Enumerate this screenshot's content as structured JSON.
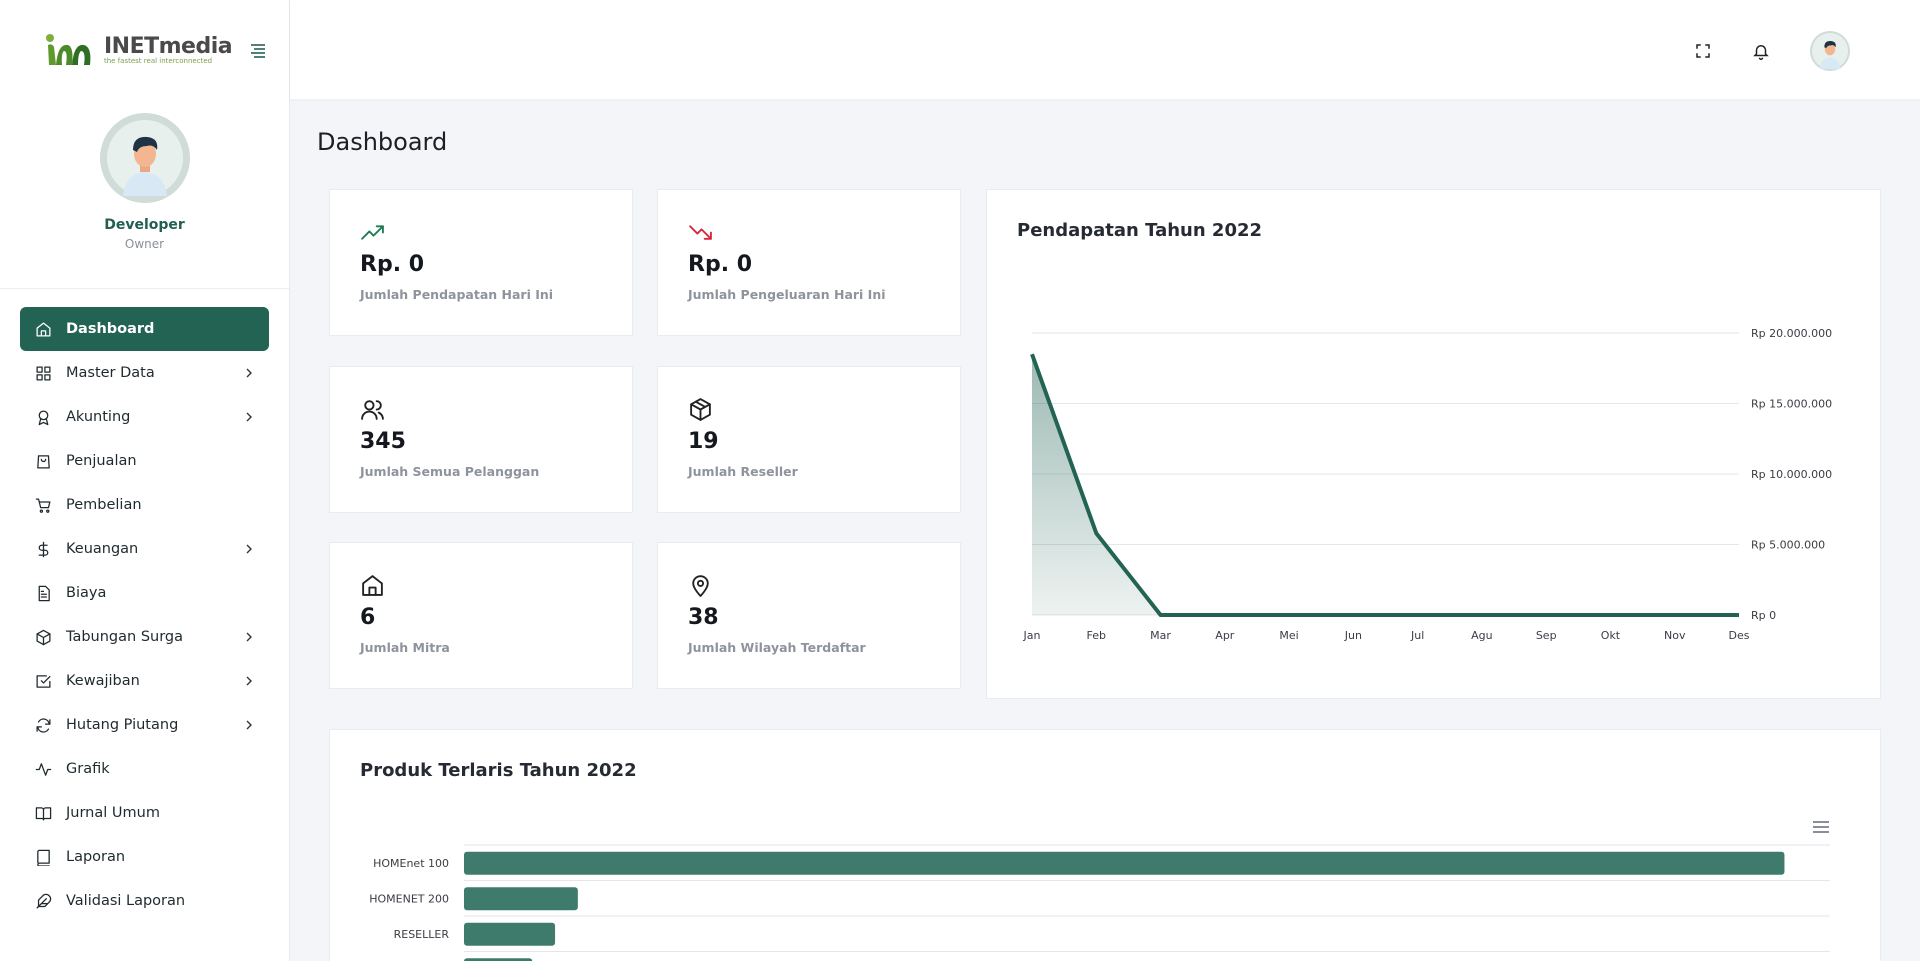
{
  "brand": {
    "name": "INETmedia",
    "tagline": "the fastest real interconnected"
  },
  "profile": {
    "name": "Developer",
    "role": "Owner"
  },
  "nav": [
    {
      "label": "Dashboard",
      "icon": "home-icon",
      "active": true,
      "has_sub": false
    },
    {
      "label": "Master Data",
      "icon": "grid-icon",
      "has_sub": true
    },
    {
      "label": "Akunting",
      "icon": "award-icon",
      "has_sub": true
    },
    {
      "label": "Penjualan",
      "icon": "shopping-bag-icon",
      "has_sub": false
    },
    {
      "label": "Pembelian",
      "icon": "cart-icon",
      "has_sub": false
    },
    {
      "label": "Keuangan",
      "icon": "dollar-icon",
      "has_sub": true
    },
    {
      "label": "Biaya",
      "icon": "file-icon",
      "has_sub": false
    },
    {
      "label": "Tabungan Surga",
      "icon": "box-icon",
      "has_sub": true
    },
    {
      "label": "Kewajiban",
      "icon": "check-square-icon",
      "has_sub": true
    },
    {
      "label": "Hutang Piutang",
      "icon": "refresh-icon",
      "has_sub": true
    },
    {
      "label": "Grafik",
      "icon": "activity-icon",
      "has_sub": false
    },
    {
      "label": "Jurnal Umum",
      "icon": "book-open-icon",
      "has_sub": false
    },
    {
      "label": "Laporan",
      "icon": "book-icon",
      "has_sub": false
    },
    {
      "label": "Validasi Laporan",
      "icon": "feather-icon",
      "has_sub": false
    }
  ],
  "page": {
    "title": "Dashboard"
  },
  "stats": [
    {
      "value": "Rp. 0",
      "label": "Jumlah Pendapatan Hari Ini",
      "icon": "trending-up-icon",
      "color": "#1f7a52"
    },
    {
      "value": "Rp. 0",
      "label": "Jumlah Pengeluaran Hari Ini",
      "icon": "trending-down-icon",
      "color": "#d6273a"
    },
    {
      "value": "345",
      "label": "Jumlah Semua Pelanggan",
      "icon": "users-icon",
      "color": "#222222"
    },
    {
      "value": "19",
      "label": "Jumlah Reseller",
      "icon": "package-icon",
      "color": "#222222"
    },
    {
      "value": "6",
      "label": "Jumlah Mitra",
      "icon": "home-icon",
      "color": "#222222"
    },
    {
      "value": "38",
      "label": "Jumlah Wilayah Terdaftar",
      "icon": "map-pin-icon",
      "color": "#222222"
    }
  ],
  "revenue_card": {
    "title": "Pendapatan Tahun 2022"
  },
  "products_card": {
    "title": "Produk Terlaris Tahun 2022"
  },
  "colors": {
    "accent": "#236353",
    "bar": "#3e7b6d"
  },
  "chart_data": [
    {
      "type": "area",
      "title": "Pendapatan Tahun 2022",
      "categories": [
        "Jan",
        "Feb",
        "Mar",
        "Apr",
        "Mei",
        "Jun",
        "Jul",
        "Agu",
        "Sep",
        "Okt",
        "Nov",
        "Des"
      ],
      "series": [
        {
          "values": [
            18500000,
            5800000,
            0,
            0,
            0,
            0,
            0,
            0,
            0,
            0,
            0,
            0
          ]
        }
      ],
      "ylim": [
        0,
        20000000
      ],
      "yticks": [
        0,
        5000000,
        10000000,
        15000000,
        20000000
      ],
      "ytick_labels": [
        "Rp 0",
        "Rp 5.000.000",
        "Rp 10.000.000",
        "Rp 15.000.000",
        "Rp 20.000.000"
      ],
      "y_axis_position": "right",
      "grid": true,
      "color": "#236353"
    },
    {
      "type": "bar",
      "orientation": "horizontal",
      "title": "Produk Terlaris Tahun 2022",
      "categories": [
        "HOMEnet 100",
        "HOMENET 200",
        "RESELLER",
        ""
      ],
      "values": [
        290,
        25,
        20,
        15
      ],
      "xlim": [
        0,
        300
      ],
      "grid": true,
      "color": "#3e7b6d"
    }
  ]
}
